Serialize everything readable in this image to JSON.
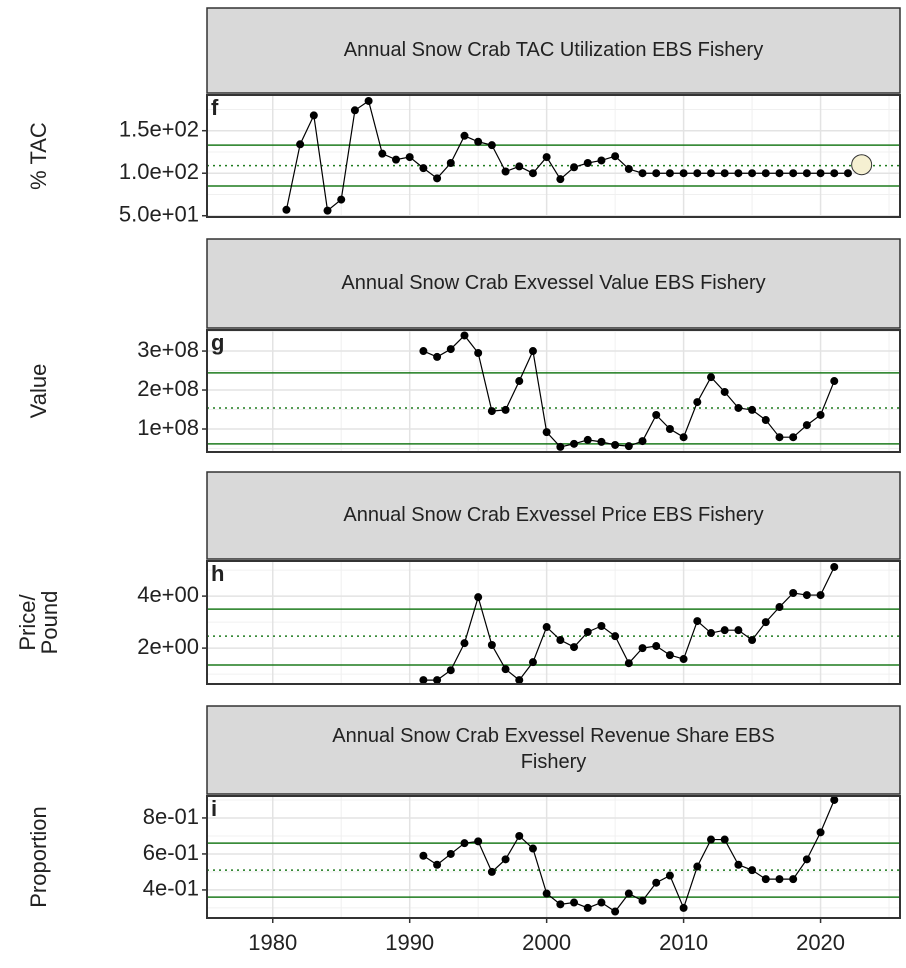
{
  "chart_data": [
    {
      "type": "line",
      "title": "Annual Snow Crab TAC Utilization EBS Fishery",
      "panel_label": "f",
      "ylabel": "% TAC",
      "x": [
        1981,
        1982,
        1983,
        1984,
        1985,
        1986,
        1987,
        1988,
        1989,
        1990,
        1991,
        1992,
        1993,
        1994,
        1995,
        1996,
        1997,
        1998,
        1999,
        2000,
        2001,
        2002,
        2003,
        2004,
        2005,
        2006,
        2007,
        2008,
        2009,
        2010,
        2011,
        2012,
        2013,
        2014,
        2015,
        2016,
        2017,
        2018,
        2019,
        2020,
        2021,
        2022
      ],
      "values": [
        57,
        134,
        168,
        56,
        69,
        174,
        185,
        123,
        116,
        119,
        106,
        94,
        112,
        144,
        137,
        133,
        102,
        108,
        100,
        119,
        93,
        107,
        112,
        115,
        120,
        105,
        100,
        100,
        100,
        100,
        100,
        100,
        100,
        100,
        100,
        100,
        100,
        100,
        100,
        100,
        100,
        100
      ],
      "color": "#000000",
      "highlight_point": {
        "x": 2023,
        "value": 110,
        "color": "#f5f0d2"
      },
      "hlines": {
        "upper": 133,
        "mean": 109,
        "lower": 85,
        "color": "#1e7b1e"
      },
      "xlim": [
        1975.2,
        2025.8
      ],
      "ylim": [
        48.5,
        192
      ],
      "yticks": [
        {
          "value": 50,
          "label": "5.0e+01"
        },
        {
          "value": 100,
          "label": "1.0e+02"
        },
        {
          "value": 150,
          "label": "1.5e+02"
        }
      ],
      "grid": true
    },
    {
      "type": "line",
      "title": "Annual Snow Crab Exvessel Value EBS Fishery",
      "panel_label": "g",
      "ylabel": "Value",
      "x": [
        1991,
        1992,
        1993,
        1994,
        1995,
        1996,
        1997,
        1998,
        1999,
        2000,
        2001,
        2002,
        2003,
        2004,
        2005,
        2006,
        2007,
        2008,
        2009,
        2010,
        2011,
        2012,
        2013,
        2014,
        2015,
        2016,
        2017,
        2018,
        2019,
        2020,
        2021
      ],
      "values": [
        300000000.0,
        285000000.0,
        305000000.0,
        340000000.0,
        295000000.0,
        146000000.0,
        149000000.0,
        223000000.0,
        300000000.0,
        92000000.0,
        54000000.0,
        62000000.0,
        72000000.0,
        67000000.0,
        59000000.0,
        56000000.0,
        69000000.0,
        136000000.0,
        100000000.0,
        79000000.0,
        169000000.0,
        233000000.0,
        195000000.0,
        154000000.0,
        149000000.0,
        123000000.0,
        79000000.0,
        79000000.0,
        110000000.0,
        136000000.0,
        223000000.0
      ],
      "color": "#000000",
      "hlines": {
        "upper": 244000000.0,
        "mean": 154000000.0,
        "lower": 62000000.0,
        "color": "#1e7b1e"
      },
      "xlim": [
        1975.2,
        2025.8
      ],
      "ylim": [
        41000000.0,
        354000000.0
      ],
      "yticks": [
        {
          "value": 100000000.0,
          "label": "1e+08"
        },
        {
          "value": 200000000.0,
          "label": "2e+08"
        },
        {
          "value": 300000000.0,
          "label": "3e+08"
        }
      ],
      "grid": true
    },
    {
      "type": "line",
      "title": "Annual Snow Crab Exvessel Price EBS Fishery",
      "panel_label": "h",
      "ylabel": [
        "Price/",
        "Pound"
      ],
      "x": [
        1991,
        1992,
        1993,
        1994,
        1995,
        1996,
        1997,
        1998,
        1999,
        2000,
        2001,
        2002,
        2003,
        2004,
        2005,
        2006,
        2007,
        2008,
        2009,
        2010,
        2011,
        2012,
        2013,
        2014,
        2015,
        2016,
        2017,
        2018,
        2019,
        2020,
        2021
      ],
      "values": [
        0.77,
        0.77,
        1.15,
        2.19,
        3.96,
        2.12,
        1.19,
        0.77,
        1.46,
        2.81,
        2.31,
        2.04,
        2.62,
        2.85,
        2.46,
        1.42,
        2.0,
        2.08,
        1.73,
        1.58,
        3.04,
        2.58,
        2.69,
        2.69,
        2.31,
        3.0,
        3.58,
        4.12,
        4.04,
        4.04,
        5.12
      ],
      "color": "#000000",
      "hlines": {
        "upper": 3.5,
        "mean": 2.46,
        "lower": 1.35,
        "color": "#1e7b1e"
      },
      "xlim": [
        1975.2,
        2025.8
      ],
      "ylim": [
        0.62,
        5.35
      ],
      "yticks": [
        {
          "value": 2,
          "label": "2e+00"
        },
        {
          "value": 4,
          "label": "4e+00"
        }
      ],
      "grid": true
    },
    {
      "type": "line",
      "title": [
        "Annual Snow Crab Exvessel Revenue Share EBS",
        "Fishery"
      ],
      "panel_label": "i",
      "ylabel": "Proportion",
      "x": [
        1991,
        1992,
        1993,
        1994,
        1995,
        1996,
        1997,
        1998,
        1999,
        2000,
        2001,
        2002,
        2003,
        2004,
        2005,
        2006,
        2007,
        2008,
        2009,
        2010,
        2011,
        2012,
        2013,
        2014,
        2015,
        2016,
        2017,
        2018,
        2019,
        2020,
        2021
      ],
      "values": [
        0.59,
        0.54,
        0.6,
        0.66,
        0.67,
        0.5,
        0.57,
        0.7,
        0.63,
        0.38,
        0.32,
        0.33,
        0.3,
        0.33,
        0.28,
        0.38,
        0.34,
        0.44,
        0.48,
        0.3,
        0.53,
        0.68,
        0.68,
        0.54,
        0.51,
        0.46,
        0.46,
        0.46,
        0.57,
        0.72,
        0.9
      ],
      "color": "#000000",
      "hlines": {
        "upper": 0.66,
        "mean": 0.51,
        "lower": 0.36,
        "color": "#1e7b1e"
      },
      "xlim": [
        1975.2,
        2025.8
      ],
      "ylim": [
        0.244,
        0.922
      ],
      "yticks": [
        {
          "value": 0.4,
          "label": "4e-01"
        },
        {
          "value": 0.6,
          "label": "6e-01"
        },
        {
          "value": 0.8,
          "label": "8e-01"
        }
      ],
      "xticks": [
        1980,
        1990,
        2000,
        2010,
        2020
      ],
      "grid": true
    }
  ]
}
